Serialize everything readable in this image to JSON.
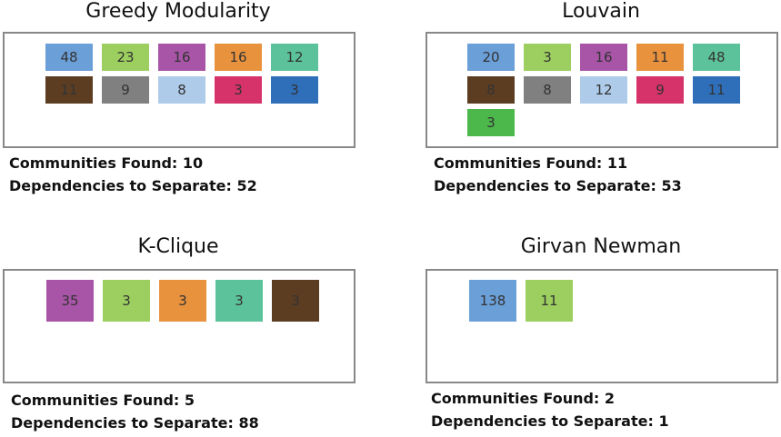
{
  "panels": [
    {
      "title": "Greedy Modularity",
      "communities": [
        {
          "value": 48,
          "color": "#6b9fd8"
        },
        {
          "value": 23,
          "color": "#9ccf5f"
        },
        {
          "value": 16,
          "color": "#a855a8"
        },
        {
          "value": 16,
          "color": "#e8923e"
        },
        {
          "value": 12,
          "color": "#5cc29b"
        },
        {
          "value": 11,
          "color": "#5c3d22"
        },
        {
          "value": 9,
          "color": "#808080"
        },
        {
          "value": 8,
          "color": "#aecbea"
        },
        {
          "value": 3,
          "color": "#d6336a"
        },
        {
          "value": 3,
          "color": "#2f6fba"
        }
      ],
      "stats": [
        {
          "label": "Communities Found:",
          "value": 10
        },
        {
          "label": "Dependencies to Separate:",
          "value": 52
        }
      ]
    },
    {
      "title": "Louvain",
      "communities": [
        {
          "value": 20,
          "color": "#6b9fd8"
        },
        {
          "value": 3,
          "color": "#9ccf5f"
        },
        {
          "value": 16,
          "color": "#a855a8"
        },
        {
          "value": 11,
          "color": "#e8923e"
        },
        {
          "value": 48,
          "color": "#5cc29b"
        },
        {
          "value": 8,
          "color": "#5c3d22"
        },
        {
          "value": 8,
          "color": "#808080"
        },
        {
          "value": 12,
          "color": "#aecbea"
        },
        {
          "value": 9,
          "color": "#d6336a"
        },
        {
          "value": 11,
          "color": "#2f6fba"
        },
        {
          "value": 3,
          "color": "#4cb84c"
        }
      ],
      "stats": [
        {
          "label": "Communities Found:",
          "value": 11
        },
        {
          "label": "Dependencies to Separate:",
          "value": 53
        }
      ]
    },
    {
      "title": "K-Clique",
      "communities": [
        {
          "value": 35,
          "color": "#a855a8"
        },
        {
          "value": 3,
          "color": "#9ccf5f"
        },
        {
          "value": 3,
          "color": "#e8923e"
        },
        {
          "value": 3,
          "color": "#5cc29b"
        },
        {
          "value": 3,
          "color": "#5c3d22"
        }
      ],
      "stats": [
        {
          "label": "Communities Found:",
          "value": 5
        },
        {
          "label": "Dependencies to Separate:",
          "value": 88
        }
      ]
    },
    {
      "title": "Girvan Newman",
      "communities": [
        {
          "value": 138,
          "color": "#6b9fd8"
        },
        {
          "value": 11,
          "color": "#9ccf5f"
        }
      ],
      "stats": [
        {
          "label": "Communities Found:",
          "value": 2
        },
        {
          "label": "Dependencies to Separate:",
          "value": 1
        }
      ]
    }
  ]
}
